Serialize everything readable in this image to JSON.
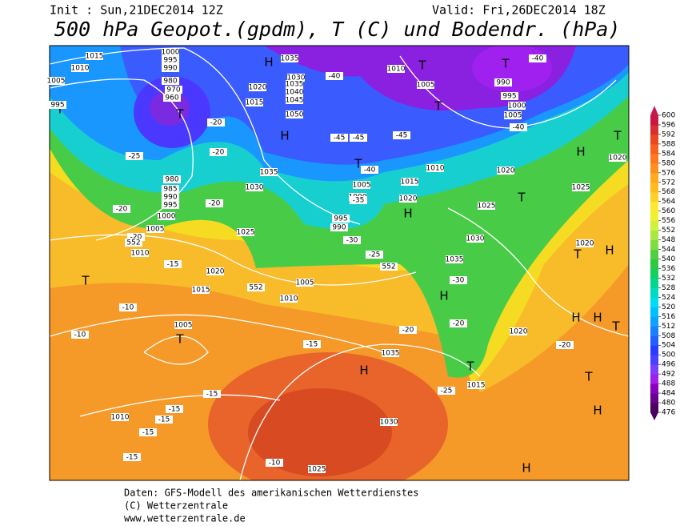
{
  "header": {
    "init": "Init : Sun,21DEC2014 12Z",
    "valid": "Valid: Fri,26DEC2014 18Z",
    "title": "500 hPa Geopot.(gpdm), T (C) und Bodendr. (hPa)"
  },
  "colorbar": {
    "ticks": [
      476,
      480,
      484,
      488,
      492,
      496,
      500,
      504,
      508,
      512,
      516,
      520,
      524,
      528,
      532,
      536,
      540,
      544,
      548,
      552,
      556,
      560,
      564,
      568,
      572,
      576,
      580,
      584,
      588,
      592,
      596,
      600
    ],
    "colors": [
      "#4a0060",
      "#6a0090",
      "#8a00c0",
      "#a020e8",
      "#7a40ff",
      "#4a40ff",
      "#2a3cff",
      "#2060ff",
      "#1a80ff",
      "#10a0ff",
      "#00c0ff",
      "#00dcf0",
      "#00dcc0",
      "#00d890",
      "#10d060",
      "#30c840",
      "#50d040",
      "#80dc40",
      "#a8e840",
      "#d0f040",
      "#f0f030",
      "#ffe830",
      "#ffd028",
      "#ffbc20",
      "#ffa820",
      "#ff9020",
      "#ff7820",
      "#f86020",
      "#e84820",
      "#d83030",
      "#c81848"
    ]
  },
  "map_labels": [
    "H",
    "T",
    "T",
    "T",
    "T",
    "H",
    "T",
    "T",
    "H",
    "T",
    "T",
    "H",
    "T",
    "T",
    "H",
    "H",
    "T",
    "H",
    "H",
    "T",
    "H",
    "T",
    "T",
    "H",
    "H",
    "1015",
    "1010",
    "1005",
    "995",
    "1000",
    "995",
    "990",
    "980",
    "970",
    "960",
    "1010",
    "1005",
    "990",
    "995",
    "1000",
    "1005",
    "1035",
    "1030",
    "1035",
    "1040",
    "1045",
    "1050",
    "1020",
    "1015",
    "1035",
    "1030",
    "1025",
    "1020",
    "1015",
    "1010",
    "1005",
    "1005",
    "1000",
    "995",
    "990",
    "1015",
    "1020",
    "1010",
    "1025",
    "1020",
    "1025",
    "1030",
    "1035",
    "1020",
    "1020",
    "1005",
    "1010",
    "1035",
    "1030",
    "1025",
    "1015",
    "1005",
    "1010",
    "1000",
    "995",
    "990",
    "985",
    "980",
    "1020",
    "-40",
    "-40",
    "-45",
    "-45",
    "-45",
    "-40",
    "-40",
    "-35",
    "-30",
    "-25",
    "-25",
    "-20",
    "-20",
    "-20",
    "-20",
    "-20",
    "-15",
    "-10",
    "-10",
    "-15",
    "-20",
    "-20",
    "-20",
    "-15",
    "-15",
    "-15",
    "-15",
    "-15",
    "-10",
    "-25",
    "-30",
    "552",
    "552",
    "552"
  ],
  "footer": [
    "Daten: GFS-Modell des amerikanischen Wetterdienstes",
    "(C) Wetterzentrale",
    "www.wetterzentrale.de"
  ]
}
